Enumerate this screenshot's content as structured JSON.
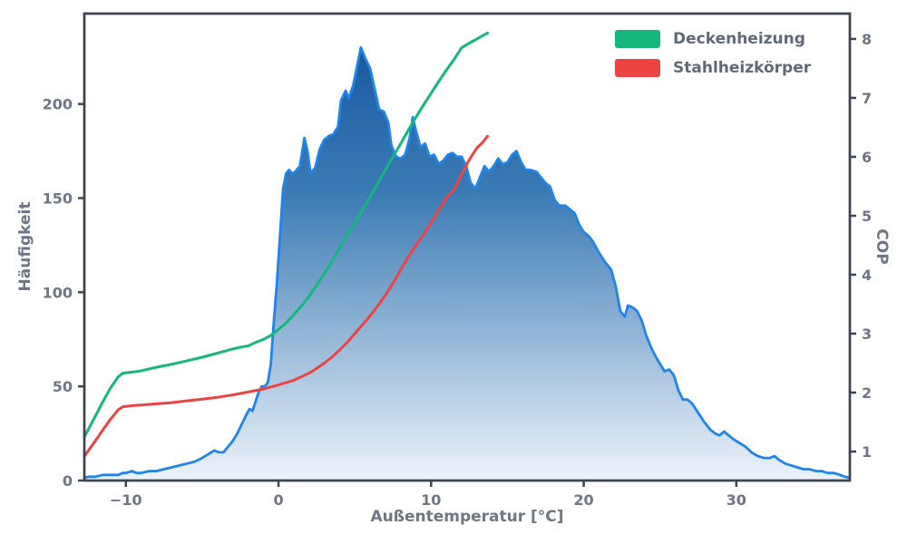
{
  "chart_data": {
    "type": "area",
    "title": "",
    "xlabel": "Außentemperatur [°C]",
    "ylabel_left": "Häufigkeit",
    "ylabel_right": "COP",
    "legend_position": "upper right",
    "grid": false,
    "x_axis": {
      "range": [
        -12.72,
        37.44
      ],
      "ticks": [
        -10,
        0,
        10,
        20,
        30
      ]
    },
    "y_left": {
      "range": [
        0,
        248
      ],
      "ticks": [
        0,
        50,
        100,
        150,
        200
      ]
    },
    "y_right": {
      "range": [
        0.508,
        8.43
      ],
      "ticks": [
        1,
        2,
        3,
        4,
        5,
        6,
        7,
        8
      ]
    },
    "colors": {
      "spine": "#3d4454",
      "tick_label": "#6e7686",
      "background": "#ffffff",
      "hist_line": "#2184e8",
      "hist_gradient_top": "#11529b",
      "hist_gradient_mid": "#3a7ab4",
      "hist_gradient_bottom": "#eef3fa",
      "deckenheizung": "#14b87d",
      "stahlheizkoerper": "#ec4343"
    },
    "histogram": {
      "name": "Häufigkeit",
      "axis": "left",
      "points": [
        [
          -12.72,
          1.5
        ],
        [
          -12.4,
          2
        ],
        [
          -12,
          2
        ],
        [
          -11.5,
          3
        ],
        [
          -11,
          3
        ],
        [
          -10.5,
          3
        ],
        [
          -10.2,
          4
        ],
        [
          -10,
          4
        ],
        [
          -9.6,
          5
        ],
        [
          -9.3,
          4
        ],
        [
          -9,
          4
        ],
        [
          -8.5,
          5
        ],
        [
          -8,
          5
        ],
        [
          -7.5,
          6
        ],
        [
          -7,
          7
        ],
        [
          -6.5,
          8
        ],
        [
          -6,
          9
        ],
        [
          -5.5,
          10
        ],
        [
          -5,
          12
        ],
        [
          -4.6,
          14
        ],
        [
          -4.2,
          16
        ],
        [
          -3.9,
          15
        ],
        [
          -3.6,
          15
        ],
        [
          -3.3,
          18
        ],
        [
          -3,
          21
        ],
        [
          -2.7,
          25
        ],
        [
          -2.4,
          30
        ],
        [
          -2.1,
          35
        ],
        [
          -1.9,
          38
        ],
        [
          -1.7,
          37
        ],
        [
          -1.5,
          42
        ],
        [
          -1.3,
          47
        ],
        [
          -1.1,
          50
        ],
        [
          -0.9,
          50
        ],
        [
          -0.7,
          52
        ],
        [
          -0.5,
          62
        ],
        [
          -0.3,
          85
        ],
        [
          -0.1,
          105
        ],
        [
          0.1,
          130
        ],
        [
          0.3,
          155
        ],
        [
          0.5,
          163
        ],
        [
          0.7,
          165
        ],
        [
          0.9,
          163
        ],
        [
          1.1,
          164
        ],
        [
          1.4,
          167
        ],
        [
          1.7,
          182
        ],
        [
          1.9,
          175
        ],
        [
          2.1,
          163
        ],
        [
          2.4,
          166
        ],
        [
          2.7,
          176
        ],
        [
          3,
          181
        ],
        [
          3.3,
          183
        ],
        [
          3.6,
          184
        ],
        [
          3.9,
          188
        ],
        [
          4.1,
          202
        ],
        [
          4.4,
          207
        ],
        [
          4.6,
          203
        ],
        [
          4.9,
          210
        ],
        [
          5.2,
          222
        ],
        [
          5.4,
          230
        ],
        [
          5.7,
          224
        ],
        [
          6,
          219
        ],
        [
          6.3,
          208
        ],
        [
          6.6,
          197
        ],
        [
          6.9,
          196
        ],
        [
          7.2,
          190
        ],
        [
          7.4,
          178
        ],
        [
          7.7,
          172
        ],
        [
          8,
          171
        ],
        [
          8.3,
          173
        ],
        [
          8.6,
          182
        ],
        [
          8.8,
          193
        ],
        [
          9,
          186
        ],
        [
          9.3,
          177
        ],
        [
          9.6,
          179
        ],
        [
          9.9,
          172
        ],
        [
          10.2,
          173
        ],
        [
          10.5,
          168
        ],
        [
          10.8,
          170
        ],
        [
          11.1,
          173
        ],
        [
          11.4,
          174
        ],
        [
          11.7,
          172
        ],
        [
          12,
          172
        ],
        [
          12.3,
          167
        ],
        [
          12.6,
          158
        ],
        [
          12.9,
          155
        ],
        [
          13.2,
          161
        ],
        [
          13.5,
          167
        ],
        [
          13.8,
          164
        ],
        [
          14.1,
          167
        ],
        [
          14.4,
          171
        ],
        [
          14.7,
          168
        ],
        [
          15,
          169
        ],
        [
          15.3,
          173
        ],
        [
          15.6,
          175
        ],
        [
          15.9,
          169
        ],
        [
          16.2,
          165
        ],
        [
          16.5,
          165
        ],
        [
          16.9,
          164
        ],
        [
          17.2,
          161
        ],
        [
          17.5,
          158
        ],
        [
          17.8,
          156
        ],
        [
          18.1,
          149
        ],
        [
          18.4,
          146
        ],
        [
          18.8,
          146
        ],
        [
          19.1,
          144
        ],
        [
          19.4,
          142
        ],
        [
          19.7,
          136
        ],
        [
          20,
          132
        ],
        [
          20.3,
          130
        ],
        [
          20.6,
          127
        ],
        [
          21,
          121
        ],
        [
          21.4,
          116
        ],
        [
          21.8,
          112
        ],
        [
          22.1,
          103
        ],
        [
          22.4,
          90
        ],
        [
          22.7,
          87
        ],
        [
          22.9,
          93
        ],
        [
          23.2,
          92
        ],
        [
          23.5,
          90
        ],
        [
          23.8,
          85
        ],
        [
          24.1,
          77
        ],
        [
          24.4,
          71
        ],
        [
          24.7,
          66
        ],
        [
          25,
          62
        ],
        [
          25.3,
          58
        ],
        [
          25.6,
          59
        ],
        [
          25.9,
          56
        ],
        [
          26.2,
          48
        ],
        [
          26.5,
          43
        ],
        [
          26.8,
          43
        ],
        [
          27.1,
          41
        ],
        [
          27.5,
          36
        ],
        [
          27.9,
          31
        ],
        [
          28.3,
          27
        ],
        [
          28.6,
          25
        ],
        [
          28.9,
          24
        ],
        [
          29.2,
          26
        ],
        [
          29.5,
          24
        ],
        [
          29.8,
          22
        ],
        [
          30.2,
          20
        ],
        [
          30.6,
          18
        ],
        [
          31,
          15
        ],
        [
          31.4,
          13
        ],
        [
          31.8,
          12
        ],
        [
          32.2,
          12
        ],
        [
          32.5,
          13
        ],
        [
          32.8,
          11
        ],
        [
          33.2,
          9
        ],
        [
          33.6,
          8
        ],
        [
          34,
          7
        ],
        [
          34.4,
          6
        ],
        [
          34.8,
          6
        ],
        [
          35.2,
          5
        ],
        [
          35.6,
          5
        ],
        [
          36,
          4
        ],
        [
          36.4,
          4
        ],
        [
          36.8,
          3
        ],
        [
          37.1,
          2
        ],
        [
          37.44,
          1.5
        ]
      ]
    },
    "series": [
      {
        "name": "Deckenheizung",
        "axis": "right",
        "color": "#14b87d",
        "points": [
          [
            -12.72,
            1.25
          ],
          [
            -12,
            1.6
          ],
          [
            -11.5,
            1.85
          ],
          [
            -11,
            2.08
          ],
          [
            -10.5,
            2.27
          ],
          [
            -10.2,
            2.33
          ],
          [
            -9.5,
            2.35
          ],
          [
            -9,
            2.37
          ],
          [
            -8,
            2.43
          ],
          [
            -7,
            2.48
          ],
          [
            -6,
            2.54
          ],
          [
            -5,
            2.6
          ],
          [
            -4,
            2.67
          ],
          [
            -3,
            2.74
          ],
          [
            -2.3,
            2.78
          ],
          [
            -2,
            2.79
          ],
          [
            -1.5,
            2.85
          ],
          [
            -1,
            2.9
          ],
          [
            -0.5,
            2.97
          ],
          [
            0,
            3.07
          ],
          [
            0.5,
            3.18
          ],
          [
            1,
            3.32
          ],
          [
            1.5,
            3.47
          ],
          [
            2,
            3.63
          ],
          [
            2.5,
            3.82
          ],
          [
            3,
            4.02
          ],
          [
            3.5,
            4.22
          ],
          [
            4,
            4.45
          ],
          [
            4.5,
            4.68
          ],
          [
            5,
            4.88
          ],
          [
            5.5,
            5.1
          ],
          [
            6,
            5.32
          ],
          [
            6.5,
            5.55
          ],
          [
            7,
            5.78
          ],
          [
            7.5,
            6.0
          ],
          [
            8,
            6.22
          ],
          [
            8.5,
            6.45
          ],
          [
            9,
            6.67
          ],
          [
            9.5,
            6.88
          ],
          [
            10,
            7.08
          ],
          [
            10.5,
            7.28
          ],
          [
            11,
            7.47
          ],
          [
            11.5,
            7.65
          ],
          [
            12,
            7.85
          ],
          [
            12.5,
            7.93
          ],
          [
            13,
            8.0
          ],
          [
            13.4,
            8.06
          ],
          [
            13.7,
            8.1
          ]
        ]
      },
      {
        "name": "Stahlheizkörper",
        "axis": "right",
        "color": "#ec4343",
        "points": [
          [
            -12.72,
            0.92
          ],
          [
            -12,
            1.18
          ],
          [
            -11.5,
            1.37
          ],
          [
            -11,
            1.55
          ],
          [
            -10.5,
            1.71
          ],
          [
            -10.2,
            1.76
          ],
          [
            -9.5,
            1.78
          ],
          [
            -9,
            1.79
          ],
          [
            -8,
            1.81
          ],
          [
            -7,
            1.83
          ],
          [
            -6,
            1.86
          ],
          [
            -5,
            1.89
          ],
          [
            -4,
            1.92
          ],
          [
            -3,
            1.96
          ],
          [
            -2,
            2.01
          ],
          [
            -1,
            2.06
          ],
          [
            0,
            2.13
          ],
          [
            0.5,
            2.17
          ],
          [
            1,
            2.21
          ],
          [
            1.5,
            2.27
          ],
          [
            2,
            2.33
          ],
          [
            2.5,
            2.41
          ],
          [
            3,
            2.5
          ],
          [
            3.5,
            2.6
          ],
          [
            4,
            2.72
          ],
          [
            4.5,
            2.85
          ],
          [
            5,
            3.0
          ],
          [
            5.5,
            3.15
          ],
          [
            6,
            3.3
          ],
          [
            6.5,
            3.47
          ],
          [
            7,
            3.65
          ],
          [
            7.5,
            3.85
          ],
          [
            8,
            4.08
          ],
          [
            8.5,
            4.3
          ],
          [
            9,
            4.5
          ],
          [
            9.5,
            4.68
          ],
          [
            10,
            4.88
          ],
          [
            10.5,
            5.1
          ],
          [
            11,
            5.3
          ],
          [
            11.5,
            5.45
          ],
          [
            12,
            5.7
          ],
          [
            12.5,
            5.95
          ],
          [
            13,
            6.15
          ],
          [
            13.4,
            6.25
          ],
          [
            13.7,
            6.35
          ]
        ]
      }
    ]
  }
}
